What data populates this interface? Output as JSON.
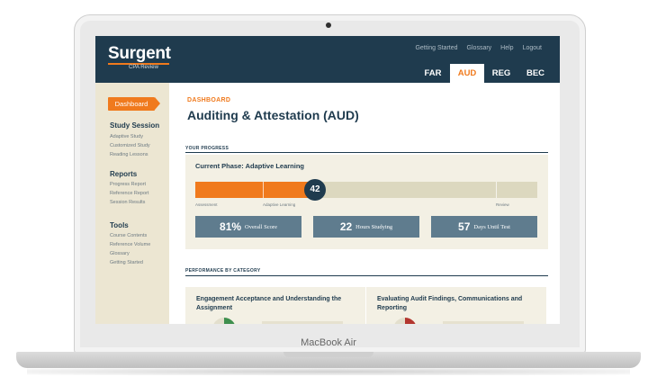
{
  "device": {
    "label": "MacBook Air"
  },
  "brand": {
    "name": "Surgent",
    "sub": "CPA Review"
  },
  "colors": {
    "navy": "#1f3b4e",
    "orange": "#f07a1d",
    "slate": "#5f7c8e",
    "cream": "#f3f0e4"
  },
  "header": {
    "links": [
      "Getting Started",
      "Glossary",
      "Help",
      "Logout"
    ],
    "tabs": [
      {
        "label": "FAR",
        "active": false
      },
      {
        "label": "AUD",
        "active": true
      },
      {
        "label": "REG",
        "active": false
      },
      {
        "label": "BEC",
        "active": false
      }
    ]
  },
  "sidebar": {
    "dashboard_label": "Dashboard",
    "sections": [
      {
        "title": "Study Session",
        "items": [
          "Adaptive Study",
          "Customized Study",
          "Reading Lessons"
        ]
      },
      {
        "title": "Reports",
        "items": [
          "Progress Report",
          "Reference Report",
          "Session Results"
        ]
      },
      {
        "title": "Tools",
        "items": [
          "Course Contents",
          "Reference Volume",
          "Glossary",
          "Getting Started"
        ]
      }
    ]
  },
  "main": {
    "breadcrumb": "DASHBOARD",
    "title": "Auditing & Attestation (AUD)",
    "progress_section": "YOUR PROGRESS",
    "phase": "Current Phase: Adaptive Learning",
    "progress_value": "42",
    "progress_fraction": 0.35,
    "bar_labels": {
      "start": "Assessment",
      "middle": "Adaptive Learning",
      "end": "Review"
    },
    "stats": [
      {
        "value": "81%",
        "label": "Overall Score"
      },
      {
        "value": "22",
        "label": "Hours Studying"
      },
      {
        "value": "57",
        "label": "Days Until Test"
      }
    ],
    "category_section": "PERFORMANCE BY CATEGORY",
    "categories": [
      {
        "title": "Engagement Acceptance and Understanding the Assignment"
      },
      {
        "title": "Evaluating Audit Findings, Communications and Reporting"
      }
    ]
  }
}
